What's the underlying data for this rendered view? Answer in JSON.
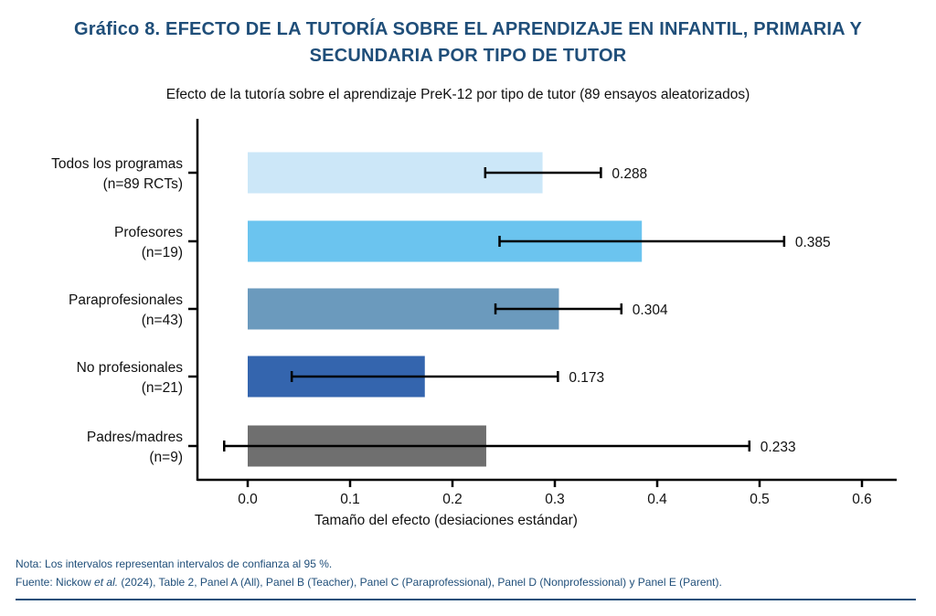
{
  "header": {
    "title_line1": "Gráfico 8. EFECTO DE LA TUTORÍA SOBRE EL APRENDIZAJE EN INFANTIL, PRIMARIA Y",
    "title_line2": "SECUNDARIA POR TIPO DE TUTOR"
  },
  "footer": {
    "note": "Nota: Los intervalos representan intervalos de confianza al 95 %.",
    "source_prefix": "Fuente: Nickow ",
    "source_italic": "et al.",
    "source_suffix": " (2024), Table 2, Panel A (All), Panel B (Teacher), Panel C (Paraprofessional), Panel D (Nonprofessional) y Panel E (Parent)."
  },
  "chart_data": {
    "type": "bar",
    "orientation": "horizontal",
    "title": "Efecto de la tutoría sobre el aprendizaje PreK-12 por tipo de tutor (89 ensayos aleatorizados)",
    "xlabel": "Tamaño del efecto (desiaciones estándar)",
    "ylabel": "",
    "xlim": [
      -0.05,
      0.635
    ],
    "xticks": [
      0.0,
      0.1,
      0.2,
      0.3,
      0.4,
      0.5,
      0.6
    ],
    "xtick_labels": [
      "0.0",
      "0.1",
      "0.2",
      "0.3",
      "0.4",
      "0.5",
      "0.6"
    ],
    "grid": false,
    "legend": "none",
    "categories": [
      {
        "line1": "Todos los programas",
        "line2": "(n=89 RCTs)"
      },
      {
        "line1": "Profesores",
        "line2": "(n=19)"
      },
      {
        "line1": "Paraprofesionales",
        "line2": "(n=43)"
      },
      {
        "line1": "No profesionales",
        "line2": "(n=21)"
      },
      {
        "line1": "Padres/madres",
        "line2": "(n=9)"
      }
    ],
    "values": [
      0.288,
      0.385,
      0.304,
      0.173,
      0.233
    ],
    "value_labels": [
      "0.288",
      "0.385",
      "0.304",
      "0.173",
      "0.233"
    ],
    "ci_lower": [
      0.232,
      0.246,
      0.242,
      0.043,
      -0.023
    ],
    "ci_upper": [
      0.345,
      0.524,
      0.365,
      0.303,
      0.49
    ],
    "colors": [
      "#cce7f8",
      "#6bc4ef",
      "#6b9abd",
      "#3465ae",
      "#6f6f6f"
    ],
    "error_bar_color": "#000000",
    "axis_color": "#000000"
  }
}
